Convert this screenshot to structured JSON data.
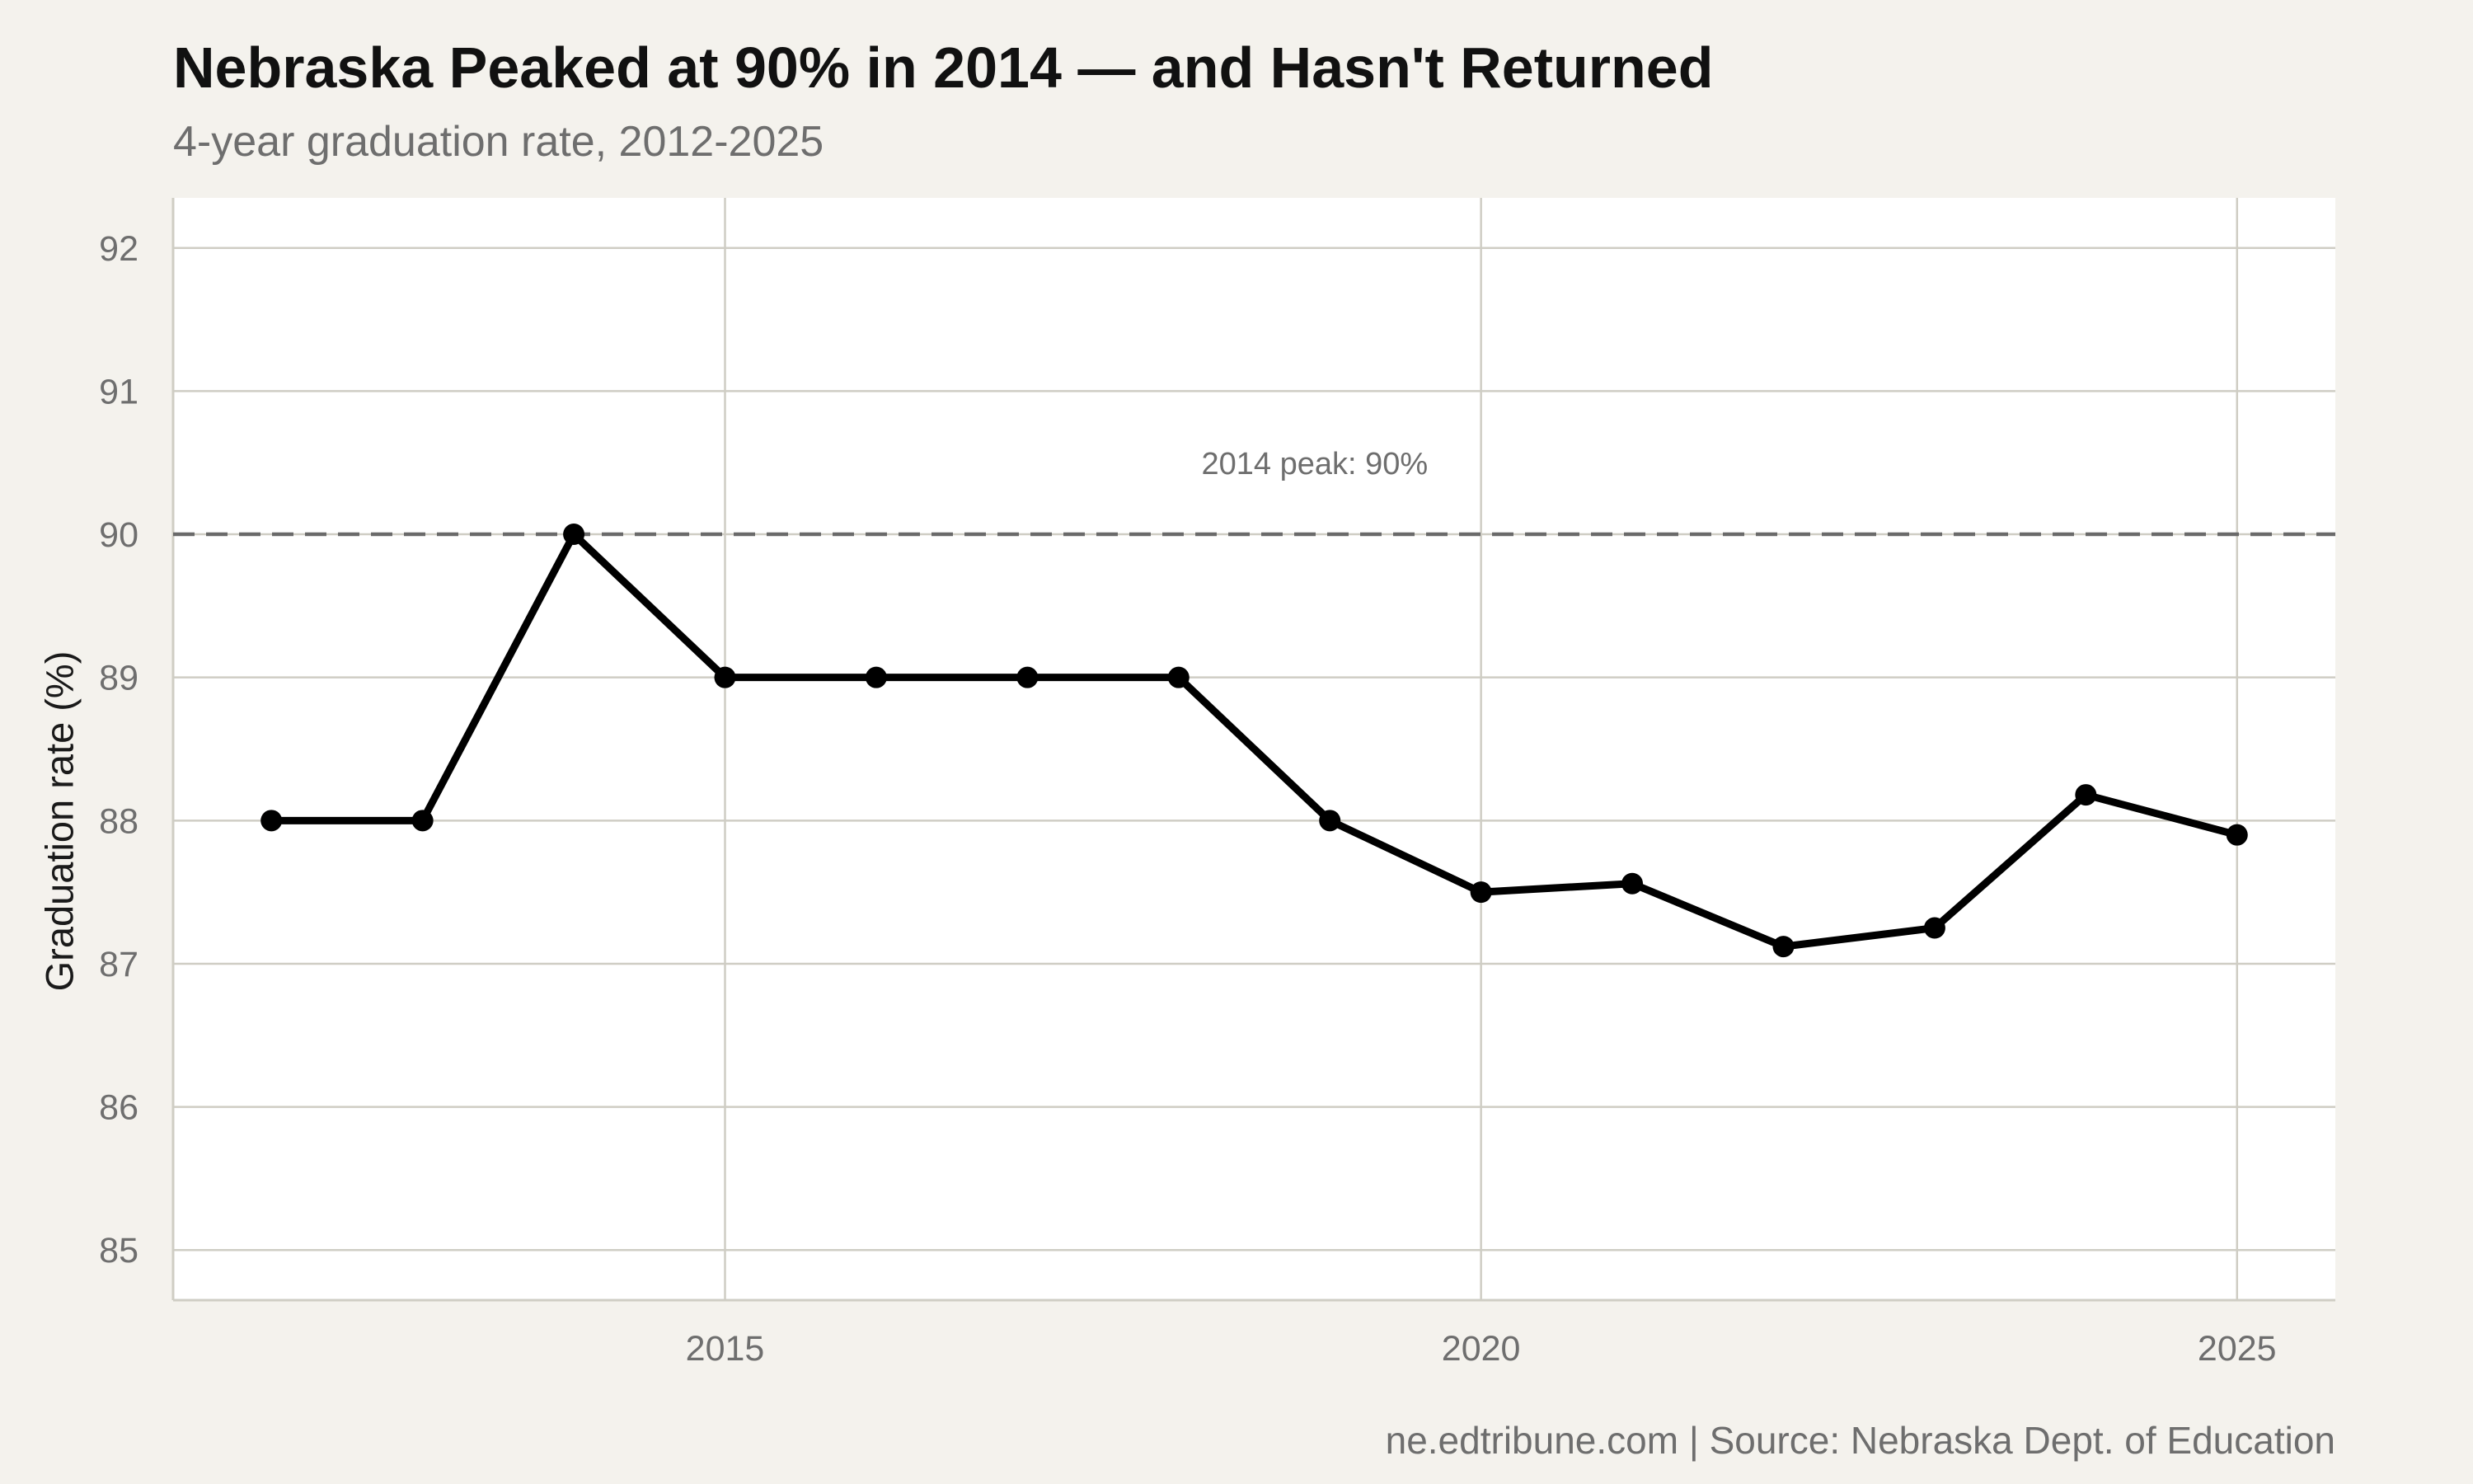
{
  "title": "Nebraska Peaked at 90% in 2014 — and Hasn't Returned",
  "subtitle": "4-year graduation rate, 2012-2025",
  "caption": "ne.edtribune.com | Source: Nebraska Dept. of Education",
  "colors": {
    "background": "#f4f2ed",
    "panel": "#ffffff",
    "grid": "#cfcdc4",
    "line": "#000000",
    "reference": "#6a6a6a",
    "text_muted": "#6e6e6e"
  },
  "chart_data": {
    "type": "line",
    "title": "Nebraska Peaked at 90% in 2014 — and Hasn't Returned",
    "subtitle": "4-year graduation rate, 2012-2025",
    "xlabel": "",
    "ylabel": "Graduation rate (%)",
    "x": [
      2012,
      2013,
      2014,
      2015,
      2016,
      2017,
      2018,
      2019,
      2020,
      2021,
      2022,
      2023,
      2024,
      2025
    ],
    "series": [
      {
        "values": [
          88.0,
          88.0,
          90.0,
          89.0,
          89.0,
          89.0,
          89.0,
          88.0,
          87.5,
          87.56,
          87.12,
          87.25,
          88.18,
          87.9
        ]
      }
    ],
    "xlim": [
      2011.35,
      2025.65
    ],
    "ylim": [
      84.65,
      92.35
    ],
    "xticks": [
      2015,
      2020,
      2025
    ],
    "yticks": [
      85,
      86,
      87,
      88,
      89,
      90,
      91,
      92
    ],
    "reference_line": {
      "y": 90,
      "style": "dashed"
    },
    "annotation": {
      "text": "2014 peak: 90%",
      "x": 2018.9,
      "y": 90.5
    },
    "grid": true,
    "legend": "none"
  }
}
